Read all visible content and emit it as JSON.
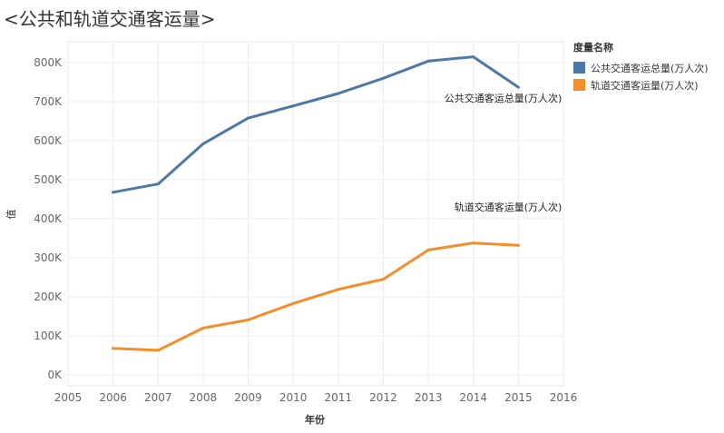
{
  "title": "<公共和轨道交通客运量>",
  "chart_data": {
    "type": "line",
    "x": [
      2006,
      2007,
      2008,
      2009,
      2010,
      2011,
      2012,
      2013,
      2014,
      2015
    ],
    "series": [
      {
        "name": "公共交通客运总量(万人次)",
        "color": "#4e79a7",
        "values": [
          468000,
          489000,
          592000,
          658000,
          689000,
          721000,
          760000,
          804000,
          815000,
          737000
        ],
        "end_label": "公共交通客运总量(万人次)"
      },
      {
        "name": "轨道交通客运量(万人次)",
        "color": "#f28e2b",
        "values": [
          68000,
          63000,
          120000,
          141000,
          183000,
          219000,
          245000,
          320000,
          338000,
          332000
        ],
        "end_label": "轨道交通客运量(万人次)"
      }
    ],
    "xlabel": "年份",
    "ylabel": "值",
    "xlim": [
      2005,
      2016
    ],
    "ylim": [
      0,
      800000
    ],
    "x_ticks": [
      "2005",
      "2006",
      "2007",
      "2008",
      "2009",
      "2010",
      "2011",
      "2012",
      "2013",
      "2014",
      "2015",
      "2016"
    ],
    "y_ticks": [
      "0K",
      "100K",
      "200K",
      "300K",
      "400K",
      "500K",
      "600K",
      "700K",
      "800K"
    ],
    "grid": true,
    "legend_position": "right"
  },
  "legend": {
    "title": "度量名称",
    "items": [
      {
        "label": "公共交通客运总量(万人次)",
        "color": "#4e79a7"
      },
      {
        "label": "轨道交通客运量(万人次)",
        "color": "#f28e2b"
      }
    ]
  }
}
